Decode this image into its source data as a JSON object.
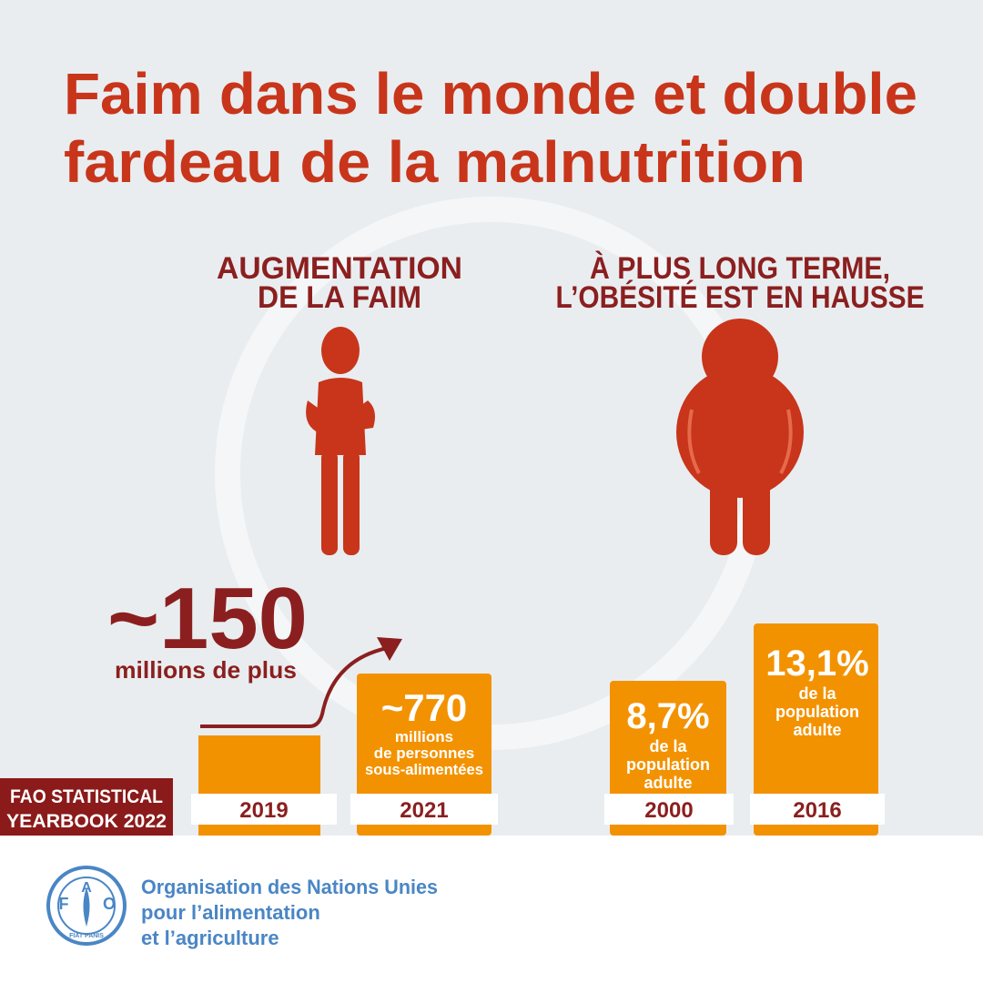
{
  "title": [
    "Faim dans le monde et double",
    "fardeau de la malnutrition"
  ],
  "panels": [
    {
      "heading": [
        "AUGMENTATION",
        "DE LA FAIM"
      ],
      "increase": {
        "value": "~150",
        "label": "millions de plus"
      },
      "bars": [
        {
          "year": "2019"
        },
        {
          "year": "2021",
          "value": "~770",
          "label": [
            "millions",
            "de personnes",
            "sous-alimentées"
          ]
        }
      ]
    },
    {
      "heading": [
        "À PLUS LONG TERME,",
        "L’OBÉSITÉ EST EN HAUSSE"
      ],
      "bars": [
        {
          "year": "2000",
          "value": "8,7%",
          "label": [
            "de la",
            "population",
            "adulte"
          ]
        },
        {
          "year": "2016",
          "value": "13,1%",
          "label": [
            "de la",
            "population",
            "adulte"
          ]
        }
      ]
    }
  ],
  "badge": [
    "FAO STATISTICAL",
    "YEARBOOK 2022"
  ],
  "footer": {
    "logo": [
      "F",
      "A",
      "O",
      "FIAT PANIS"
    ],
    "org": [
      "Organisation des Nations Unies",
      "pour l’alimentation",
      "et l’agriculture"
    ]
  }
}
